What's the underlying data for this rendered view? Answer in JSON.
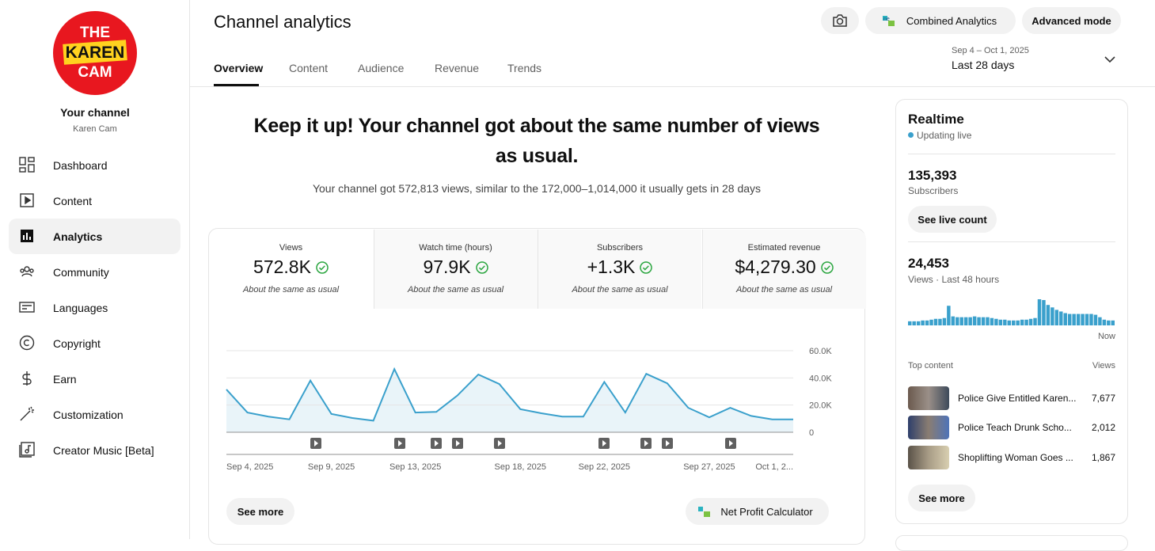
{
  "sidebar": {
    "logo": [
      "THE",
      "KAREN",
      "CAM"
    ],
    "channel_title": "Your channel",
    "channel_name": "Karen Cam",
    "nav": [
      "Dashboard",
      "Content",
      "Analytics",
      "Community",
      "Languages",
      "Copyright",
      "Earn",
      "Customization",
      "Creator Music [Beta]"
    ]
  },
  "header": {
    "title": "Channel analytics",
    "tabs": [
      "Overview",
      "Content",
      "Audience",
      "Revenue",
      "Trends"
    ],
    "combined": "Combined Analytics",
    "advanced": "Advanced mode",
    "date_range": "Sep 4 – Oct 1, 2025",
    "period": "Last 28 days"
  },
  "summary": {
    "headline": "Keep it up! Your channel got about the same number of views as usual.",
    "detail": "Your channel got 572,813 views, similar to the 172,000–1,014,000 it usually gets in 28 days"
  },
  "metrics": [
    {
      "label": "Views",
      "value": "572.8K",
      "note": "About the same as usual"
    },
    {
      "label": "Watch time (hours)",
      "value": "97.9K",
      "note": "About the same as usual"
    },
    {
      "label": "Subscribers",
      "value": "+1.3K",
      "note": "About the same as usual"
    },
    {
      "label": "Estimated revenue",
      "value": "$4,279.30",
      "note": "About the same as usual"
    }
  ],
  "chart": {
    "type": "line",
    "color": "#3aa0cc",
    "categories": [
      "Sep 4, 2025",
      null,
      null,
      null,
      null,
      "Sep 9, 2025",
      null,
      null,
      null,
      "Sep 13, 2025",
      null,
      null,
      null,
      null,
      "Sep 18, 2025",
      null,
      null,
      null,
      "Sep 22, 2025",
      null,
      null,
      null,
      null,
      "Sep 27, 2025",
      null,
      null,
      null,
      "Oct 1, 2..."
    ],
    "values": [
      31500,
      14500,
      11500,
      9500,
      38000,
      13500,
      10500,
      8500,
      46500,
      14500,
      15000,
      27000,
      42500,
      35500,
      17000,
      14000,
      11500,
      11500,
      37000,
      14500,
      43000,
      36000,
      18000,
      11000,
      18000,
      12000,
      9500,
      9500
    ],
    "ylim": [
      0,
      60000
    ],
    "yticks": [
      0,
      {
        "value": 20000,
        "label": "20.0K"
      },
      {
        "value": 40000,
        "label": "40.0K"
      },
      {
        "value": 60000,
        "label": "60.0K"
      }
    ],
    "grid": true
  },
  "chart_buttons": {
    "see_more": "See more",
    "calculator": "Net Profit Calculator"
  },
  "realtime": {
    "title": "Realtime",
    "status": "Updating live",
    "subscribers": "135,393",
    "subscribers_label": "Subscribers",
    "live_count": "See live count",
    "views": "24,453",
    "views_label": "Views · Last 48 hours",
    "bars": {
      "type": "bar",
      "color": "#3aa0cc",
      "values": [
        250,
        250,
        250,
        300,
        300,
        350,
        400,
        400,
        450,
        1200,
        550,
        500,
        500,
        500,
        500,
        550,
        500,
        500,
        500,
        450,
        400,
        350,
        350,
        300,
        300,
        300,
        350,
        350,
        400,
        450,
        1600,
        1550,
        1250,
        1100,
        950,
        850,
        750,
        700,
        700,
        700,
        700,
        700,
        700,
        650,
        500,
        350,
        300,
        300
      ]
    },
    "now": "Now",
    "top_content": "Top content",
    "views_header": "Views",
    "items": [
      {
        "title": "Police Give Entitled Karen...",
        "views": "7,677"
      },
      {
        "title": "Police Teach Drunk Scho...",
        "views": "2,012"
      },
      {
        "title": "Shoplifting Woman Goes ...",
        "views": "1,867"
      }
    ],
    "see_more": "See more"
  }
}
